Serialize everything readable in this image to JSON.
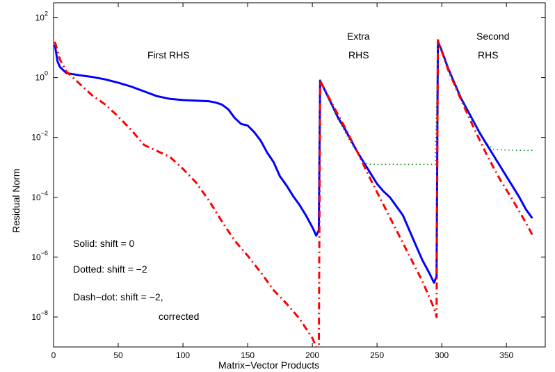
{
  "chart_data": {
    "type": "line",
    "title": "",
    "xlabel": "Matrix−Vector Products",
    "ylabel": "Residual Norm",
    "xlim": [
      0,
      380
    ],
    "ylim_log10": [
      -9,
      2.5
    ],
    "y_scale": "log",
    "grid": false,
    "x_ticks": [
      "0",
      "50",
      "100",
      "150",
      "200",
      "250",
      "300",
      "350"
    ],
    "y_ticks": [
      {
        "base": "10",
        "exp": "2"
      },
      {
        "base": "10",
        "exp": "0"
      },
      {
        "base": "10",
        "exp": "−2"
      },
      {
        "base": "10",
        "exp": "−4"
      },
      {
        "base": "10",
        "exp": "−6"
      },
      {
        "base": "10",
        "exp": "−8"
      }
    ],
    "annotations": {
      "first_rhs": "First RHS",
      "extra_line1": "Extra",
      "extra_line2": "RHS",
      "second_line1": "Second",
      "second_line2": "RHS"
    },
    "legend_text": {
      "solid": "Solid: shift = 0",
      "dotted": "Dotted: shift = −2",
      "dashdot_line1": "Dash−dot: shift = −2,",
      "dashdot_line2": "corrected"
    },
    "series": [
      {
        "style": "solid",
        "color": "#0000ff",
        "points": [
          [
            1,
            1.1
          ],
          [
            3,
            0.55
          ],
          [
            5,
            0.35
          ],
          [
            10,
            0.15
          ],
          [
            20,
            0.08
          ],
          [
            30,
            0.02
          ],
          [
            40,
            -0.06
          ],
          [
            50,
            -0.17
          ],
          [
            60,
            -0.3
          ],
          [
            70,
            -0.46
          ],
          [
            80,
            -0.62
          ],
          [
            90,
            -0.71
          ],
          [
            100,
            -0.75
          ],
          [
            110,
            -0.77
          ],
          [
            120,
            -0.79
          ],
          [
            125,
            -0.83
          ],
          [
            130,
            -0.9
          ],
          [
            135,
            -1.06
          ],
          [
            140,
            -1.35
          ],
          [
            145,
            -1.55
          ],
          [
            150,
            -1.6
          ],
          [
            155,
            -1.82
          ],
          [
            160,
            -2.1
          ],
          [
            165,
            -2.5
          ],
          [
            170,
            -2.82
          ],
          [
            175,
            -3.3
          ],
          [
            180,
            -3.6
          ],
          [
            185,
            -3.95
          ],
          [
            190,
            -4.25
          ],
          [
            195,
            -4.6
          ],
          [
            200,
            -5.0
          ],
          [
            203,
            -5.28
          ],
          [
            205,
            -5.1
          ],
          [
            206,
            -0.1
          ],
          [
            210,
            -0.45
          ],
          [
            215,
            -0.9
          ],
          [
            220,
            -1.35
          ],
          [
            225,
            -1.7
          ],
          [
            230,
            -2.1
          ],
          [
            235,
            -2.5
          ],
          [
            240,
            -2.85
          ],
          [
            245,
            -3.2
          ],
          [
            250,
            -3.55
          ],
          [
            255,
            -3.8
          ],
          [
            260,
            -4.0
          ],
          [
            265,
            -4.3
          ],
          [
            270,
            -4.6
          ],
          [
            275,
            -5.1
          ],
          [
            280,
            -5.6
          ],
          [
            285,
            -6.1
          ],
          [
            290,
            -6.5
          ],
          [
            294,
            -6.85
          ],
          [
            296,
            -6.65
          ],
          [
            297,
            1.2
          ],
          [
            300,
            0.9
          ],
          [
            305,
            0.3
          ],
          [
            310,
            -0.2
          ],
          [
            315,
            -0.7
          ],
          [
            320,
            -1.1
          ],
          [
            325,
            -1.5
          ],
          [
            330,
            -1.9
          ],
          [
            335,
            -2.25
          ],
          [
            340,
            -2.6
          ],
          [
            345,
            -2.95
          ],
          [
            350,
            -3.3
          ],
          [
            355,
            -3.65
          ],
          [
            360,
            -4.0
          ],
          [
            365,
            -4.4
          ],
          [
            370,
            -4.7
          ]
        ]
      },
      {
        "style": "dotted",
        "color": "#008000",
        "points": [
          [
            206,
            -0.1
          ],
          [
            210,
            -0.45
          ],
          [
            220,
            -1.4
          ],
          [
            230,
            -2.2
          ],
          [
            240,
            -2.85
          ],
          [
            245,
            -2.9
          ],
          [
            260,
            -2.9
          ],
          [
            280,
            -2.9
          ],
          [
            295,
            -2.9
          ],
          [
            297,
            1.2
          ],
          [
            305,
            0.3
          ],
          [
            320,
            -1.15
          ],
          [
            335,
            -2.2
          ],
          [
            340,
            -2.4
          ],
          [
            350,
            -2.42
          ],
          [
            360,
            -2.43
          ],
          [
            370,
            -2.43
          ]
        ]
      },
      {
        "style": "dashdot",
        "color": "#ff0000",
        "points": [
          [
            1,
            1.2
          ],
          [
            5,
            0.6
          ],
          [
            10,
            0.2
          ],
          [
            20,
            -0.2
          ],
          [
            30,
            -0.6
          ],
          [
            40,
            -0.9
          ],
          [
            50,
            -1.3
          ],
          [
            60,
            -1.75
          ],
          [
            70,
            -2.25
          ],
          [
            80,
            -2.45
          ],
          [
            90,
            -2.65
          ],
          [
            100,
            -3.05
          ],
          [
            110,
            -3.5
          ],
          [
            120,
            -4.1
          ],
          [
            130,
            -4.8
          ],
          [
            140,
            -5.45
          ],
          [
            150,
            -5.95
          ],
          [
            160,
            -6.5
          ],
          [
            170,
            -7.1
          ],
          [
            180,
            -7.55
          ],
          [
            190,
            -8.05
          ],
          [
            200,
            -8.7
          ],
          [
            205,
            -9.2
          ],
          [
            206,
            -0.1
          ],
          [
            215,
            -0.85
          ],
          [
            225,
            -1.65
          ],
          [
            235,
            -2.5
          ],
          [
            245,
            -3.4
          ],
          [
            255,
            -4.25
          ],
          [
            265,
            -5.1
          ],
          [
            275,
            -5.95
          ],
          [
            285,
            -6.8
          ],
          [
            294,
            -7.7
          ],
          [
            296,
            -8.0
          ],
          [
            297,
            1.25
          ],
          [
            305,
            0.25
          ],
          [
            315,
            -0.75
          ],
          [
            325,
            -1.7
          ],
          [
            335,
            -2.6
          ],
          [
            345,
            -3.4
          ],
          [
            355,
            -4.1
          ],
          [
            365,
            -4.85
          ],
          [
            370,
            -5.25
          ]
        ]
      }
    ]
  }
}
